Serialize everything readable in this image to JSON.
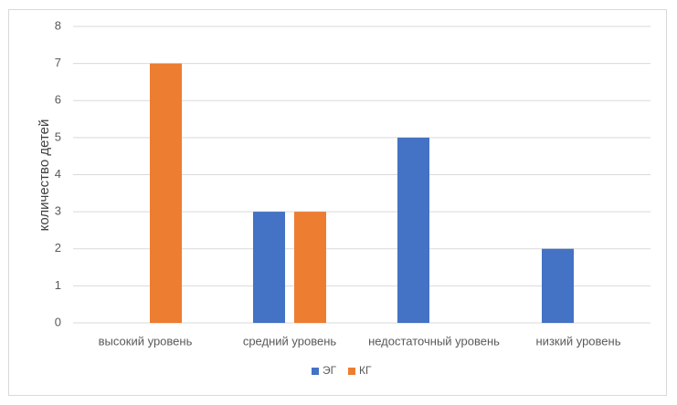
{
  "chart_data": {
    "type": "bar",
    "title": "",
    "xlabel": "",
    "ylabel": "количество детей",
    "ylim": [
      0,
      8
    ],
    "yticks": [
      0,
      1,
      2,
      3,
      4,
      5,
      6,
      7,
      8
    ],
    "grid": true,
    "legend_position": "bottom",
    "categories": [
      "высокий уровень",
      "средний уровень",
      "недостаточный уровень",
      "низкий уровень"
    ],
    "series": [
      {
        "name": "ЭГ",
        "color": "#4472c4",
        "values": [
          0,
          3,
          5,
          2
        ]
      },
      {
        "name": "КГ",
        "color": "#ed7d31",
        "values": [
          7,
          3,
          0,
          0
        ]
      }
    ]
  }
}
